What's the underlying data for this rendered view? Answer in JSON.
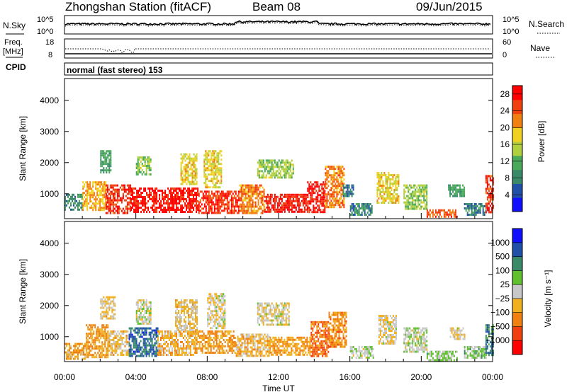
{
  "header": {
    "title": "Zhongshan Station (fitACF)",
    "beam": "Beam 08",
    "date": "09/Jun/2015"
  },
  "nsky_panel": {
    "label": "N.Sky",
    "left_ticks": [
      "10^5",
      "10^0"
    ],
    "right_ticks": [
      "10^5",
      "10^0"
    ],
    "right_label": "N.Search"
  },
  "freq_panel": {
    "label_line1": "Freq.",
    "label_line2": "[MHz]",
    "left_ticks": [
      "18",
      "8"
    ],
    "right_ticks": [
      "60",
      "0"
    ],
    "right_label": "Nave"
  },
  "cpid_panel": {
    "label": "CPID",
    "text": "normal (fast stereo) 153"
  },
  "chart_data": [
    {
      "type": "heatmap",
      "name": "power",
      "ylabel": "Slant Range [km]",
      "ylim": [
        200,
        4700
      ],
      "yticks": [
        "1000",
        "2000",
        "3000",
        "4000"
      ],
      "xlim_hours": [
        0,
        24
      ],
      "xticks": [
        "00:00",
        "04:00",
        "08:00",
        "12:00",
        "16:00",
        "20:00",
        "00:00"
      ],
      "colorbar": {
        "label": "Power [dB]",
        "range": [
          0,
          30
        ],
        "ticks": [
          "4",
          "8",
          "12",
          "16",
          "20",
          "24",
          "28"
        ],
        "colors": [
          "#1010ff",
          "#2050a8",
          "#3a8a6a",
          "#4aaa5a",
          "#b0d040",
          "#f0d020",
          "#f08010",
          "#f04010",
          "#ff0000"
        ]
      },
      "regions": [
        {
          "t0": 0.0,
          "t1": 1.0,
          "r0": 500,
          "r1": 1000,
          "level": 8
        },
        {
          "t0": 1.0,
          "t1": 2.3,
          "r0": 450,
          "r1": 1400,
          "level": 20
        },
        {
          "t0": 2.3,
          "t1": 3.7,
          "r0": 400,
          "r1": 1300,
          "level": 26
        },
        {
          "t0": 2.0,
          "t1": 2.6,
          "r0": 1700,
          "r1": 2400,
          "level": 10
        },
        {
          "t0": 3.7,
          "t1": 7.5,
          "r0": 400,
          "r1": 1200,
          "level": 28
        },
        {
          "t0": 4.0,
          "t1": 4.8,
          "r0": 1600,
          "r1": 2200,
          "level": 14
        },
        {
          "t0": 6.5,
          "t1": 7.4,
          "r0": 1300,
          "r1": 2300,
          "level": 18
        },
        {
          "t0": 7.5,
          "t1": 9.8,
          "r0": 400,
          "r1": 1100,
          "level": 26
        },
        {
          "t0": 7.8,
          "t1": 8.8,
          "r0": 1200,
          "r1": 2400,
          "level": 18
        },
        {
          "t0": 9.8,
          "t1": 11.2,
          "r0": 350,
          "r1": 1300,
          "level": 22
        },
        {
          "t0": 10.8,
          "t1": 12.8,
          "r0": 1500,
          "r1": 2100,
          "level": 14
        },
        {
          "t0": 11.2,
          "t1": 13.6,
          "r0": 450,
          "r1": 1000,
          "level": 27
        },
        {
          "t0": 13.6,
          "t1": 14.6,
          "r0": 400,
          "r1": 1400,
          "level": 28
        },
        {
          "t0": 14.6,
          "t1": 15.7,
          "r0": 600,
          "r1": 1900,
          "level": 22
        },
        {
          "t0": 15.6,
          "t1": 16.2,
          "r0": 900,
          "r1": 1300,
          "level": 8
        },
        {
          "t0": 16.0,
          "t1": 17.2,
          "r0": 300,
          "r1": 700,
          "level": 8
        },
        {
          "t0": 17.5,
          "t1": 18.7,
          "r0": 700,
          "r1": 1700,
          "level": 18
        },
        {
          "t0": 19.0,
          "t1": 20.3,
          "r0": 500,
          "r1": 1300,
          "level": 14
        },
        {
          "t0": 20.3,
          "t1": 22.0,
          "r0": 250,
          "r1": 500,
          "level": 24
        },
        {
          "t0": 21.5,
          "t1": 22.4,
          "r0": 900,
          "r1": 1300,
          "level": 10
        },
        {
          "t0": 22.4,
          "t1": 23.6,
          "r0": 300,
          "r1": 700,
          "level": 8
        },
        {
          "t0": 23.6,
          "t1": 24.0,
          "r0": 400,
          "r1": 1600,
          "level": 26
        }
      ]
    },
    {
      "type": "heatmap",
      "name": "velocity",
      "ylabel": "Slant Range [km]",
      "ylim": [
        200,
        4700
      ],
      "yticks": [
        "1000",
        "2000",
        "3000",
        "4000"
      ],
      "xlim_hours": [
        0,
        24
      ],
      "xticks": [
        "00:00",
        "04:00",
        "08:00",
        "12:00",
        "16:00",
        "20:00",
        "00:00"
      ],
      "xlabel": "Time UT",
      "colorbar": {
        "label": "Velocity [m s⁻¹]",
        "range": [
          -1200,
          1200
        ],
        "ticks": [
          "1000",
          "500",
          "100",
          "25",
          "−25",
          "−100",
          "−500",
          "−1000"
        ],
        "colors": [
          "#ff0000",
          "#f04010",
          "#f08010",
          "#f0b020",
          "#c8c8c8",
          "#60c030",
          "#3a8a6a",
          "#2050a8",
          "#1010ff"
        ]
      },
      "regions": [
        {
          "t0": 0.0,
          "t1": 1.2,
          "r0": 300,
          "r1": 800,
          "level": -300
        },
        {
          "t0": 1.2,
          "t1": 2.4,
          "r0": 350,
          "r1": 1400,
          "level": -400
        },
        {
          "t0": 2.4,
          "t1": 3.6,
          "r0": 400,
          "r1": 1200,
          "level": -200
        },
        {
          "t0": 2.0,
          "t1": 2.8,
          "r0": 1600,
          "r1": 2300,
          "level": -150
        },
        {
          "t0": 3.6,
          "t1": 5.2,
          "r0": 400,
          "r1": 1300,
          "level": 700
        },
        {
          "t0": 4.0,
          "t1": 4.8,
          "r0": 1400,
          "r1": 2200,
          "level": 10
        },
        {
          "t0": 5.2,
          "t1": 7.3,
          "r0": 400,
          "r1": 1200,
          "level": -300
        },
        {
          "t0": 6.2,
          "t1": 7.4,
          "r0": 1200,
          "r1": 2200,
          "level": -150
        },
        {
          "t0": 7.3,
          "t1": 9.6,
          "r0": 500,
          "r1": 1200,
          "level": -400
        },
        {
          "t0": 8.0,
          "t1": 9.0,
          "r0": 1300,
          "r1": 2400,
          "level": -80
        },
        {
          "t0": 9.6,
          "t1": 11.5,
          "r0": 350,
          "r1": 1100,
          "level": -250
        },
        {
          "t0": 10.8,
          "t1": 12.6,
          "r0": 1400,
          "r1": 2100,
          "level": -20
        },
        {
          "t0": 11.5,
          "t1": 13.8,
          "r0": 450,
          "r1": 1000,
          "level": -400
        },
        {
          "t0": 13.8,
          "t1": 14.8,
          "r0": 400,
          "r1": 1500,
          "level": -600
        },
        {
          "t0": 14.8,
          "t1": 15.8,
          "r0": 700,
          "r1": 1800,
          "level": -450
        },
        {
          "t0": 16.0,
          "t1": 17.3,
          "r0": 300,
          "r1": 700,
          "level": 80
        },
        {
          "t0": 17.6,
          "t1": 18.6,
          "r0": 800,
          "r1": 1700,
          "level": -100
        },
        {
          "t0": 19.0,
          "t1": 20.3,
          "r0": 500,
          "r1": 1300,
          "level": 60
        },
        {
          "t0": 20.3,
          "t1": 22.0,
          "r0": 250,
          "r1": 550,
          "level": 150
        },
        {
          "t0": 21.6,
          "t1": 22.4,
          "r0": 900,
          "r1": 1300,
          "level": -100
        },
        {
          "t0": 22.4,
          "t1": 23.6,
          "r0": 300,
          "r1": 700,
          "level": 200
        },
        {
          "t0": 23.6,
          "t1": 24.0,
          "r0": 400,
          "r1": 1400,
          "level": 600
        }
      ]
    }
  ]
}
